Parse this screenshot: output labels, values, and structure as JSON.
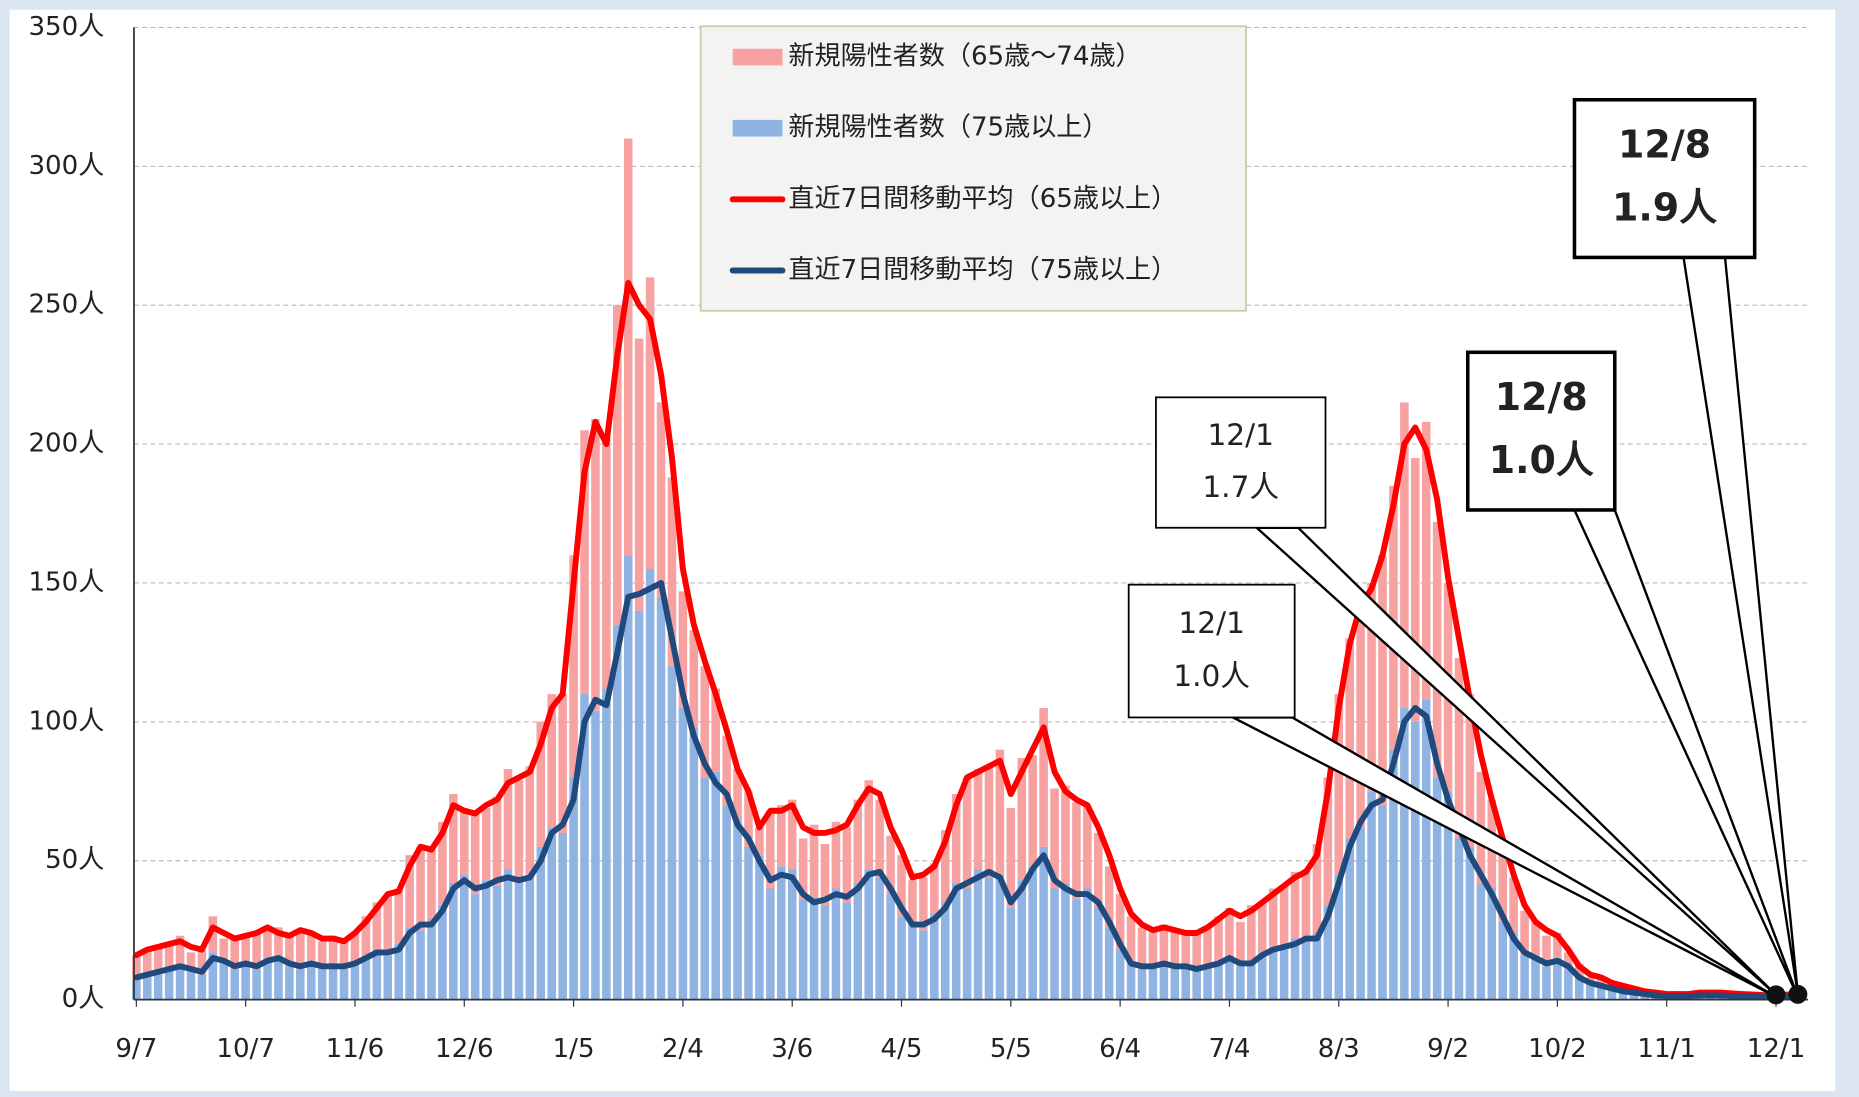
{
  "chart_data": {
    "type": "bar",
    "categories": [
      "9/7",
      null,
      null,
      null,
      null,
      null,
      null,
      null,
      null,
      null,
      "10/7",
      null,
      null,
      null,
      null,
      null,
      null,
      null,
      null,
      null,
      "11/6",
      null,
      null,
      null,
      null,
      null,
      null,
      null,
      null,
      null,
      "12/6",
      null,
      null,
      null,
      null,
      null,
      null,
      null,
      null,
      null,
      "1/5",
      null,
      null,
      null,
      null,
      null,
      null,
      null,
      null,
      null,
      "2/4",
      null,
      null,
      null,
      null,
      null,
      null,
      null,
      null,
      null,
      "3/6",
      null,
      null,
      null,
      null,
      null,
      null,
      null,
      null,
      null,
      "4/5",
      null,
      null,
      null,
      null,
      null,
      null,
      null,
      null,
      null,
      "5/5",
      null,
      null,
      null,
      null,
      null,
      null,
      null,
      null,
      null,
      "6/4",
      null,
      null,
      null,
      null,
      null,
      null,
      null,
      null,
      null,
      "7/4",
      null,
      null,
      null,
      null,
      null,
      null,
      null,
      null,
      null,
      "8/3",
      null,
      null,
      null,
      null,
      null,
      null,
      null,
      null,
      null,
      "9/2",
      null,
      null,
      null,
      null,
      null,
      null,
      null,
      null,
      null,
      "10/2",
      null,
      null,
      null,
      null,
      null,
      null,
      null,
      null,
      null,
      "11/1",
      null,
      null,
      null,
      null,
      null,
      null,
      null,
      null,
      null,
      "12/1",
      null,
      null
    ],
    "series": [
      {
        "name": "新規陽性者数（65歳～74歳）",
        "type": "bar",
        "color": "#f7a1a1",
        "values": [
          9,
          8,
          10,
          8,
          10,
          7,
          9,
          13,
          9,
          11,
          9,
          13,
          11,
          10,
          11,
          14,
          10,
          9,
          10,
          10,
          12,
          14,
          17,
          22,
          20,
          26,
          30,
          25,
          30,
          32,
          24,
          30,
          26,
          32,
          36,
          37,
          39,
          45,
          48,
          50,
          80,
          95,
          105,
          90,
          115,
          150,
          98,
          105,
          70,
          68,
          42,
          35,
          40,
          30,
          25,
          18,
          20,
          10,
          28,
          22,
          25,
          22,
          26,
          22,
          24,
          27,
          30,
          32,
          28,
          21,
          22,
          15,
          19,
          18,
          26,
          32,
          40,
          36,
          40,
          45,
          36,
          44,
          40,
          50,
          36,
          35,
          35,
          30,
          27,
          22,
          20,
          16,
          15,
          12,
          15,
          12,
          13,
          12,
          15,
          16,
          17,
          16,
          20,
          18,
          21,
          23,
          24,
          26,
          32,
          46,
          65,
          72,
          80,
          75,
          90,
          95,
          110,
          95,
          100,
          92,
          75,
          65,
          55,
          40,
          32,
          28,
          20,
          16,
          12,
          11,
          9,
          6,
          4,
          3,
          2,
          2,
          2,
          1,
          1,
          1,
          1,
          1,
          1,
          1,
          1,
          1,
          1,
          1,
          1,
          1,
          1,
          1,
          1
        ]
      },
      {
        "name": "新規陽性者数（75歳以上）",
        "type": "bar",
        "color": "#8fb3e3",
        "values": [
          7,
          10,
          9,
          12,
          13,
          10,
          9,
          17,
          13,
          11,
          14,
          11,
          15,
          16,
          12,
          11,
          14,
          12,
          13,
          11,
          12,
          16,
          18,
          16,
          20,
          26,
          25,
          29,
          34,
          42,
          45,
          38,
          43,
          41,
          47,
          42,
          45,
          55,
          62,
          60,
          80,
          110,
          104,
          112,
          135,
          160,
          140,
          155,
          145,
          120,
          105,
          98,
          80,
          82,
          70,
          65,
          55,
          52,
          40,
          48,
          47,
          36,
          37,
          34,
          40,
          35,
          42,
          47,
          44,
          38,
          30,
          28,
          25,
          31,
          35,
          42,
          40,
          47,
          44,
          45,
          33,
          43,
          48,
          55,
          40,
          42,
          36,
          40,
          33,
          26,
          18,
          14,
          11,
          13,
          12,
          13,
          11,
          12,
          11,
          14,
          16,
          12,
          14,
          17,
          19,
          18,
          22,
          21,
          24,
          34,
          45,
          58,
          62,
          75,
          70,
          90,
          105,
          100,
          108,
          80,
          75,
          58,
          55,
          42,
          40,
          28,
          24,
          16,
          16,
          12,
          15,
          11,
          9,
          5,
          6,
          4,
          3,
          3,
          2,
          1,
          1,
          2,
          1,
          2,
          1,
          2,
          1,
          1,
          1,
          1,
          1,
          1,
          1
        ]
      },
      {
        "name": "直近7日間移動平均（65歳以上）",
        "type": "line",
        "color": "#ff0000",
        "values": [
          16,
          18,
          19,
          20,
          21,
          19,
          18,
          26,
          24,
          22,
          23,
          24,
          26,
          24,
          23,
          25,
          24,
          22,
          22,
          21,
          24,
          28,
          33,
          38,
          39,
          48,
          55,
          54,
          60,
          70,
          68,
          67,
          70,
          72,
          78,
          80,
          82,
          92,
          105,
          110,
          150,
          190,
          208,
          200,
          232,
          258,
          250,
          245,
          225,
          195,
          155,
          135,
          122,
          110,
          97,
          83,
          75,
          62,
          68,
          68,
          70,
          62,
          60,
          60,
          61,
          63,
          70,
          76,
          74,
          62,
          54,
          44,
          45,
          48,
          57,
          70,
          80,
          82,
          84,
          86,
          74,
          82,
          90,
          98,
          82,
          75,
          72,
          70,
          62,
          52,
          40,
          31,
          27,
          25,
          26,
          25,
          24,
          24,
          26,
          29,
          32,
          30,
          32,
          35,
          38,
          41,
          44,
          46,
          52,
          75,
          105,
          128,
          142,
          148,
          160,
          178,
          200,
          206,
          198,
          180,
          152,
          130,
          108,
          88,
          72,
          58,
          45,
          34,
          28,
          25,
          23,
          18,
          12,
          9,
          8,
          6,
          5,
          4,
          3,
          2.5,
          2,
          2,
          2,
          2.5,
          2.5,
          2.5,
          2.2,
          2,
          1.8,
          1.6,
          1.7,
          1.8,
          1.9
        ]
      },
      {
        "name": "直近7日間移動平均（75歳以上）",
        "type": "line",
        "color": "#1f4a7e",
        "values": [
          8,
          9,
          10,
          11,
          12,
          11,
          10,
          15,
          14,
          12,
          13,
          12,
          14,
          15,
          13,
          12,
          13,
          12,
          12,
          12,
          13,
          15,
          17,
          17,
          18,
          24,
          27,
          27,
          32,
          40,
          43,
          40,
          41,
          43,
          44,
          43,
          44,
          50,
          60,
          63,
          72,
          100,
          108,
          106,
          125,
          145,
          146,
          148,
          150,
          130,
          110,
          95,
          85,
          78,
          74,
          63,
          58,
          50,
          43,
          45,
          44,
          38,
          35,
          36,
          38,
          37,
          40,
          45,
          46,
          40,
          33,
          27,
          27,
          29,
          33,
          40,
          42,
          44,
          46,
          44,
          35,
          40,
          47,
          52,
          43,
          40,
          38,
          38,
          35,
          28,
          20,
          13,
          12,
          12,
          13,
          12,
          12,
          11,
          12,
          13,
          15,
          13,
          13,
          16,
          18,
          19,
          20,
          22,
          22,
          30,
          42,
          55,
          64,
          70,
          72,
          85,
          100,
          105,
          102,
          85,
          72,
          62,
          52,
          45,
          38,
          30,
          22,
          17,
          15,
          13,
          14,
          12,
          8,
          6,
          5,
          4,
          3,
          2.5,
          2,
          1.5,
          1.3,
          1.3,
          1.3,
          1.5,
          1.5,
          1.5,
          1.3,
          1.2,
          1.1,
          1.0,
          1.0,
          1.0,
          1.0
        ]
      }
    ],
    "ylim": [
      0,
      350
    ],
    "yticks": [
      {
        "value": 0,
        "label": "0人"
      },
      {
        "value": 50,
        "label": "50人"
      },
      {
        "value": 100,
        "label": "100人"
      },
      {
        "value": 150,
        "label": "150人"
      },
      {
        "value": 200,
        "label": "200人"
      },
      {
        "value": 250,
        "label": "250人"
      },
      {
        "value": 300,
        "label": "300人"
      },
      {
        "value": 350,
        "label": "350人"
      }
    ],
    "grid": true,
    "legend": "top",
    "annotations": [
      {
        "lines": [
          "12/1",
          "1.7人"
        ],
        "bold": false
      },
      {
        "lines": [
          "12/1",
          "1.0人"
        ],
        "bold": false
      },
      {
        "lines": [
          "12/8",
          "1.0人"
        ],
        "bold": true
      },
      {
        "lines": [
          "12/8",
          "1.9人"
        ],
        "bold": true
      }
    ]
  }
}
